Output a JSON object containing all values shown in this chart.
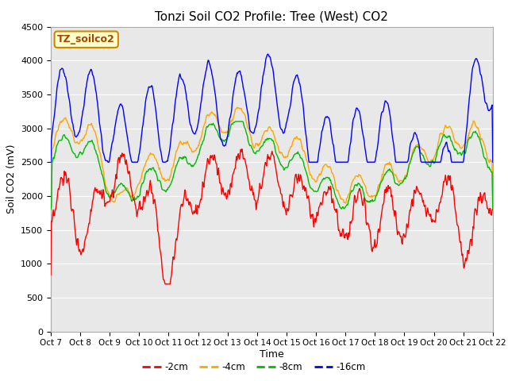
{
  "title": "Tonzi Soil CO2 Profile: Tree (West) CO2",
  "ylabel": "Soil CO2 (mV)",
  "xlabel": "Time",
  "legend_label": "TZ_soilco2",
  "ylim": [
    0,
    4500
  ],
  "yticks": [
    0,
    500,
    1000,
    1500,
    2000,
    2500,
    3000,
    3500,
    4000,
    4500
  ],
  "xtick_labels": [
    "Oct 7",
    "Oct 8",
    "Oct 9",
    "Oct 10",
    "Oct 11",
    "Oct 12",
    "Oct 13",
    "Oct 14",
    "Oct 15",
    "Oct 16",
    "Oct 17",
    "Oct 18",
    "Oct 19",
    "Oct 20",
    "Oct 21",
    "Oct 22"
  ],
  "colors": {
    "-2cm": "#ff0000",
    "-4cm": "#ffa500",
    "-8cm": "#00bb00",
    "-16cm": "#0000ff"
  },
  "fig_bg": "#ffffff",
  "plot_bg": "#e8e8e8",
  "grid_color": "#ffffff",
  "legend_box_facecolor": "#ffffcc",
  "legend_box_edgecolor": "#cc8800",
  "legend_text_color": "#aa4400",
  "title_fontsize": 11,
  "axis_label_fontsize": 9,
  "tick_fontsize": 8
}
